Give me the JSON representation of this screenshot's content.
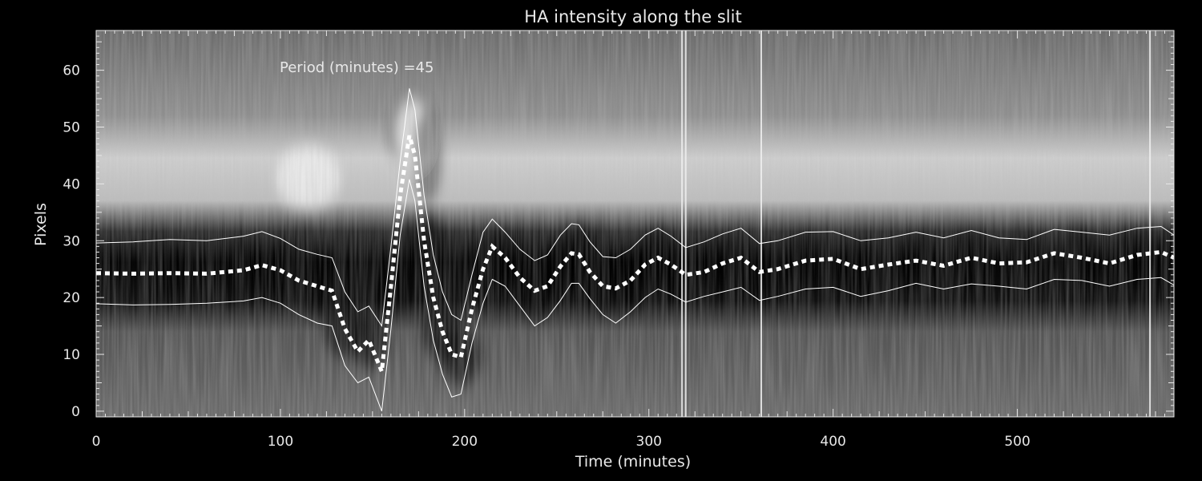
{
  "chart_data": {
    "type": "heatmap",
    "title": "HA intensity along the slit",
    "xlabel": "Time (minutes)",
    "ylabel": "Pixels",
    "xlim": [
      0,
      585
    ],
    "ylim": [
      -1,
      67
    ],
    "xticks": [
      0,
      100,
      200,
      300,
      400,
      500
    ],
    "yticks": [
      0,
      10,
      20,
      30,
      40,
      50,
      60
    ],
    "annotation": "Period (minutes) =45",
    "colormap": "grayscale",
    "series": [
      {
        "style": "dotted-thick",
        "x": [
          0,
          20,
          40,
          60,
          80,
          90,
          100,
          110,
          120,
          128,
          135,
          142,
          148,
          155,
          160,
          165,
          170,
          173,
          178,
          183,
          188,
          193,
          198,
          204,
          210,
          215,
          222,
          230,
          238,
          245,
          252,
          258,
          262,
          268,
          275,
          282,
          290,
          298,
          305,
          312,
          320,
          330,
          340,
          350,
          360,
          370,
          385,
          400,
          415,
          430,
          445,
          460,
          475,
          490,
          505,
          520,
          535,
          550,
          565,
          578,
          585
        ],
        "y": [
          24.3,
          24.2,
          24.3,
          24.2,
          24.8,
          25.7,
          24.8,
          23.0,
          22.0,
          21.2,
          14.5,
          10.5,
          12.5,
          7.0,
          22.0,
          38.0,
          48.5,
          45.0,
          30.0,
          20.0,
          14.0,
          10.0,
          9.5,
          18.0,
          25.0,
          29.0,
          27.0,
          23.5,
          21.2,
          22.0,
          25.5,
          27.8,
          27.6,
          24.5,
          22.0,
          21.6,
          23.0,
          25.8,
          27.0,
          25.8,
          24.0,
          24.5,
          26.0,
          27.0,
          24.5,
          25.0,
          26.5,
          26.8,
          25.0,
          25.8,
          26.5,
          25.6,
          27.0,
          26.0,
          26.2,
          27.8,
          27.0,
          26.0,
          27.5,
          28.0,
          27.0
        ]
      },
      {
        "style": "thin-solid",
        "x": [
          0,
          20,
          40,
          60,
          80,
          90,
          100,
          110,
          120,
          128,
          135,
          142,
          148,
          155,
          160,
          165,
          170,
          173,
          178,
          183,
          188,
          193,
          198,
          204,
          210,
          215,
          222,
          230,
          238,
          245,
          252,
          258,
          262,
          268,
          275,
          282,
          290,
          298,
          305,
          312,
          320,
          330,
          340,
          350,
          360,
          370,
          385,
          400,
          415,
          430,
          445,
          460,
          475,
          490,
          505,
          520,
          535,
          550,
          565,
          578,
          585
        ],
        "y": [
          29.6,
          29.8,
          30.2,
          30.0,
          30.8,
          31.6,
          30.4,
          28.5,
          27.6,
          27.0,
          21.0,
          17.5,
          18.5,
          15.0,
          29.0,
          44.0,
          56.8,
          53.0,
          38.0,
          27.5,
          21.0,
          17.0,
          16.0,
          24.0,
          31.5,
          33.8,
          31.5,
          28.5,
          26.5,
          27.5,
          31.0,
          33.0,
          32.8,
          29.8,
          27.2,
          27.0,
          28.5,
          31.0,
          32.2,
          30.8,
          28.8,
          29.8,
          31.2,
          32.2,
          29.5,
          30.0,
          31.5,
          31.6,
          30.0,
          30.5,
          31.5,
          30.5,
          31.8,
          30.5,
          30.2,
          32.0,
          31.5,
          31.0,
          32.2,
          32.5,
          31.0
        ]
      },
      {
        "style": "thin-solid",
        "x": [
          0,
          20,
          40,
          60,
          80,
          90,
          100,
          110,
          120,
          128,
          135,
          142,
          148,
          155,
          160,
          165,
          170,
          173,
          178,
          183,
          188,
          193,
          198,
          204,
          210,
          215,
          222,
          230,
          238,
          245,
          252,
          258,
          262,
          268,
          275,
          282,
          290,
          298,
          305,
          312,
          320,
          330,
          340,
          350,
          360,
          370,
          385,
          400,
          415,
          430,
          445,
          460,
          475,
          490,
          505,
          520,
          535,
          550,
          565,
          578,
          585
        ],
        "y": [
          18.9,
          18.7,
          18.8,
          19.0,
          19.4,
          20.0,
          19.0,
          17.0,
          15.5,
          15.0,
          8.0,
          5.0,
          6.0,
          0.0,
          14.5,
          31.0,
          40.8,
          37.0,
          22.0,
          12.5,
          6.5,
          2.5,
          3.0,
          12.0,
          19.0,
          23.2,
          22.0,
          18.5,
          15.0,
          16.5,
          19.5,
          22.5,
          22.5,
          19.8,
          17.0,
          15.5,
          17.5,
          20.0,
          21.5,
          20.6,
          19.2,
          20.2,
          21.0,
          21.8,
          19.5,
          20.2,
          21.5,
          21.8,
          20.2,
          21.2,
          22.5,
          21.5,
          22.4,
          22.0,
          21.5,
          23.2,
          23.0,
          22.0,
          23.2,
          23.5,
          22.2
        ]
      }
    ],
    "vertical_streaks": [
      318,
      320,
      361,
      572
    ]
  }
}
